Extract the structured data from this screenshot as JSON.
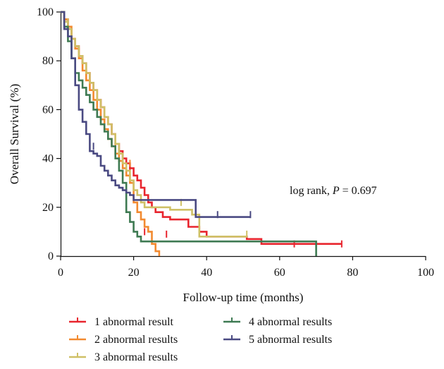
{
  "chart_data": {
    "type": "line",
    "subtype": "kaplan-meier step",
    "xlabel": "Follow-up time (months)",
    "ylabel": "Overall Survival (%)",
    "xlim": [
      0,
      100
    ],
    "ylim": [
      0,
      100
    ],
    "xticks": [
      "0",
      "20",
      "40",
      "60",
      "80",
      "100"
    ],
    "yticks": [
      "0",
      "20",
      "40",
      "60",
      "80",
      "100"
    ],
    "grid": false,
    "legend_position": "bottom",
    "annotation": {
      "prefix": "log rank, ",
      "italic": "P",
      "suffix": " = 0.697"
    },
    "series": [
      {
        "name": "1 abnormal result",
        "color": "#e8252e",
        "x": [
          0,
          1,
          2,
          3,
          4,
          5,
          6,
          7,
          8,
          9,
          10,
          11,
          12,
          13,
          14,
          15,
          16,
          17,
          18,
          19,
          20,
          21,
          22,
          23,
          24,
          25,
          26,
          28,
          30,
          35,
          38,
          40,
          45,
          51,
          55,
          60,
          65,
          70,
          77
        ],
        "y": [
          100,
          97,
          93,
          89,
          86,
          82,
          79,
          75,
          71,
          68,
          64,
          61,
          57,
          54,
          50,
          46,
          43,
          40,
          38,
          36,
          33,
          31,
          28,
          25,
          22,
          20,
          18,
          16,
          15,
          12,
          10,
          8,
          8,
          7,
          5,
          5,
          5,
          5,
          5
        ],
        "censor_x": [
          17,
          19,
          23,
          29,
          64,
          77
        ],
        "censor_y": [
          38,
          35,
          10,
          9,
          5,
          5
        ]
      },
      {
        "name": "2 abnormal results",
        "color": "#f28a30",
        "x": [
          0,
          1,
          2,
          3,
          4,
          5,
          6,
          7,
          8,
          9,
          10,
          11,
          12,
          13,
          14,
          15,
          16,
          17,
          18,
          19,
          20,
          21,
          22,
          23,
          24,
          25,
          26,
          27
        ],
        "y": [
          100,
          97,
          94,
          89,
          85,
          81,
          76,
          72,
          68,
          64,
          60,
          56,
          52,
          48,
          45,
          42,
          39,
          36,
          33,
          30,
          22,
          18,
          15,
          12,
          10,
          5,
          2,
          0
        ],
        "censor_x": [
          15,
          19
        ],
        "censor_y": [
          45,
          38
        ]
      },
      {
        "name": "3 abnormal results",
        "color": "#cfc066",
        "x": [
          0,
          1,
          2,
          3,
          4,
          5,
          6,
          7,
          8,
          9,
          10,
          11,
          12,
          13,
          14,
          15,
          16,
          17,
          18,
          19,
          20,
          21,
          22,
          23,
          25,
          27,
          30,
          33,
          36,
          38,
          40,
          51
        ],
        "y": [
          100,
          96,
          93,
          89,
          86,
          82,
          79,
          75,
          71,
          68,
          64,
          61,
          57,
          54,
          50,
          46,
          42,
          38,
          35,
          31,
          27,
          25,
          22,
          20,
          20,
          20,
          19,
          19,
          17,
          8,
          8,
          8
        ],
        "censor_x": [
          2,
          33,
          51
        ],
        "censor_y": [
          96,
          22,
          9
        ]
      },
      {
        "name": "4 abnormal results",
        "color": "#3e7a52",
        "x": [
          0,
          1,
          2,
          3,
          4,
          5,
          6,
          7,
          8,
          9,
          10,
          11,
          12,
          13,
          14,
          15,
          16,
          17,
          18,
          19,
          20,
          21,
          22,
          23,
          24,
          50,
          70
        ],
        "y": [
          100,
          94,
          88,
          81,
          75,
          72,
          69,
          66,
          63,
          60,
          57,
          54,
          51,
          48,
          45,
          40,
          35,
          30,
          18,
          14,
          10,
          8,
          6,
          6,
          6,
          6,
          0
        ],
        "censor_x": [],
        "censor_y": []
      },
      {
        "name": "5 abnormal results",
        "color": "#4a4a82",
        "x": [
          0,
          1,
          2,
          3,
          4,
          5,
          6,
          7,
          8,
          9,
          10,
          11,
          12,
          13,
          14,
          15,
          16,
          17,
          18,
          19,
          20,
          22,
          37,
          39,
          43,
          52
        ],
        "y": [
          100,
          93,
          90,
          81,
          70,
          60,
          55,
          50,
          43,
          42,
          41,
          37,
          35,
          33,
          31,
          29,
          28,
          27,
          26,
          25,
          23,
          23,
          16,
          16,
          16,
          16
        ],
        "censor_x": [
          9,
          43,
          52
        ],
        "censor_y": [
          45,
          17,
          17
        ]
      }
    ]
  },
  "legend": [
    {
      "label": "1 abnormal result",
      "color": "#e8252e"
    },
    {
      "label": "2 abnormal results",
      "color": "#f28a30"
    },
    {
      "label": "3 abnormal results",
      "color": "#cfc066"
    },
    {
      "label": "4 abnormal results",
      "color": "#3e7a52"
    },
    {
      "label": "5 abnormal results",
      "color": "#4a4a82"
    }
  ]
}
